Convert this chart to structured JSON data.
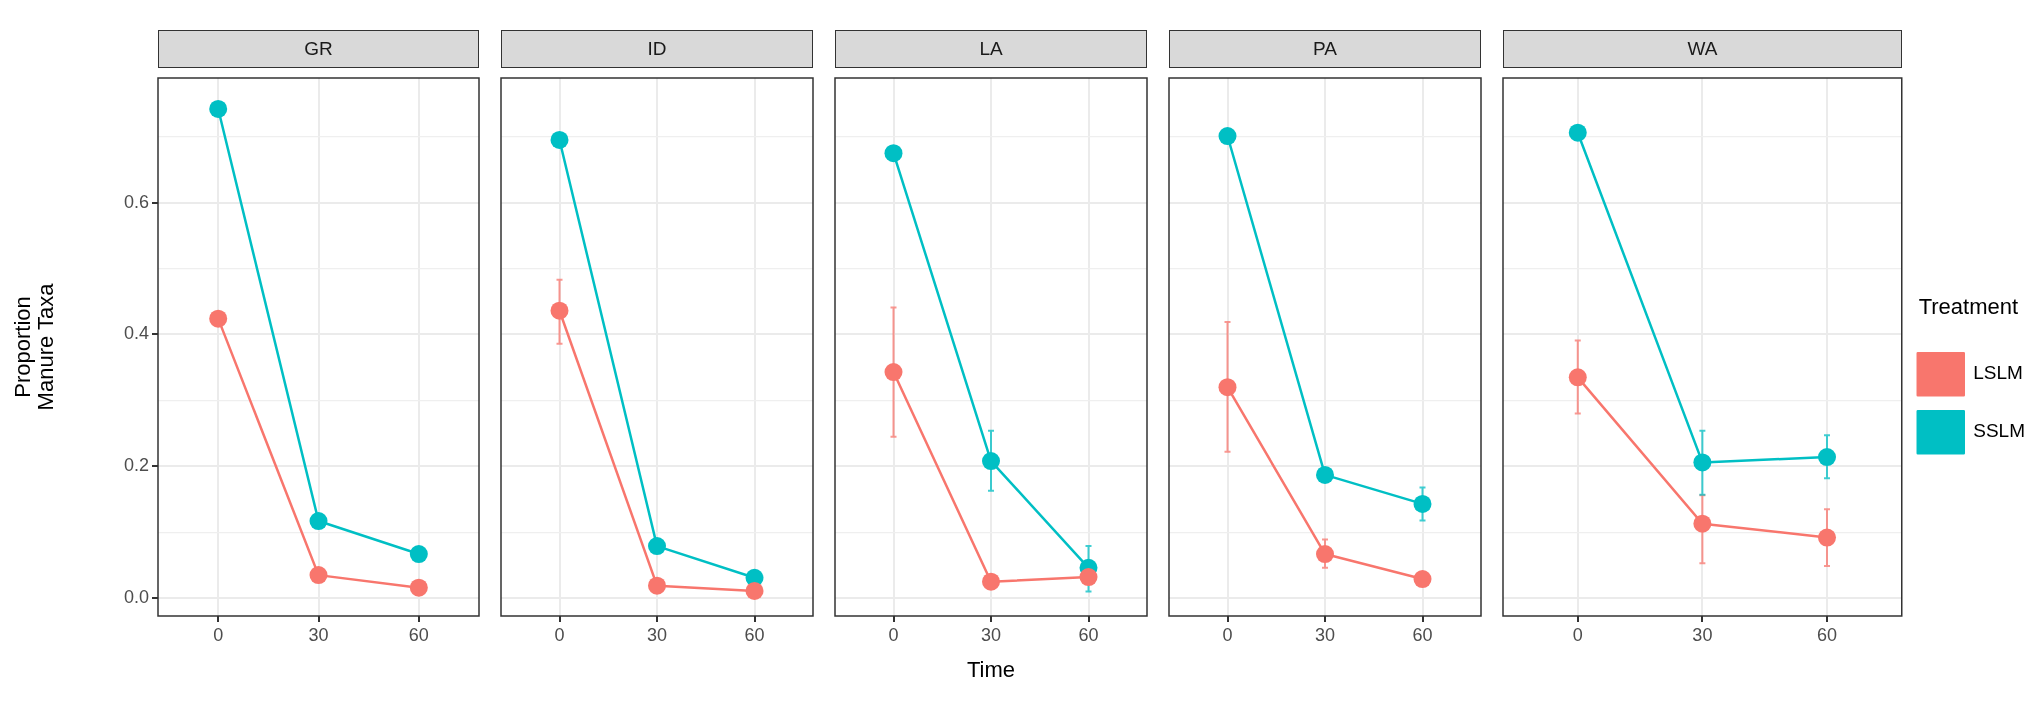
{
  "chart_data": [
    {
      "type": "line",
      "title": "GR",
      "ylabel": "Proportion\nManure Taxa",
      "x": [
        0,
        30,
        60
      ],
      "xlim": [
        -18,
        78
      ],
      "xticks": [
        0,
        30,
        60
      ],
      "ylim": [
        -0.027,
        0.789
      ],
      "yticks": [
        {
          "value": 0,
          "label": "0.0"
        },
        {
          "value": 0.1,
          "label": null
        },
        0.2,
        {
          "value": 0.3,
          "label": null
        },
        0.4,
        {
          "value": 0.5,
          "label": null
        },
        0.6,
        {
          "value": 0.7,
          "label": null
        }
      ],
      "grid": true,
      "marker": "circle",
      "legend": false,
      "series": [
        {
          "color": "#f8766d",
          "values": [
            0.424,
            0.035,
            0.016
          ],
          "errors": [
            null,
            null,
            null
          ]
        },
        {
          "color": "#00bfc4",
          "values": [
            0.742,
            0.117,
            0.067
          ],
          "errors": [
            null,
            null,
            null
          ]
        }
      ]
    },
    {
      "type": "line",
      "title": "ID",
      "x": [
        0,
        30,
        60
      ],
      "xlim": [
        -18,
        78
      ],
      "xticks": [
        0,
        30,
        60
      ],
      "ylim": [
        -0.027,
        0.789
      ],
      "yticks": [
        0,
        {
          "value": 0.1,
          "label": null
        },
        0.2,
        {
          "value": 0.3,
          "label": null
        },
        0.4,
        {
          "value": 0.5,
          "label": null
        },
        0.6,
        {
          "value": 0.7,
          "label": null
        }
      ],
      "grid": true,
      "marker": "circle",
      "legend": false,
      "tick_labels": "x",
      "series": [
        {
          "color": "#f8766d",
          "values": [
            0.436,
            0.019,
            0.011
          ],
          "errors": [
            [
              0.386,
              0.483
            ],
            null,
            null
          ]
        },
        {
          "color": "#00bfc4",
          "values": [
            0.695,
            0.079,
            0.031
          ],
          "errors": [
            null,
            null,
            null
          ]
        }
      ]
    },
    {
      "type": "line",
      "title": "LA",
      "xlabel": "Time",
      "x": [
        0,
        30,
        60
      ],
      "xlim": [
        -18,
        78
      ],
      "xticks": [
        0,
        30,
        60
      ],
      "ylim": [
        -0.027,
        0.789
      ],
      "yticks": [
        0,
        {
          "value": 0.1,
          "label": null
        },
        0.2,
        {
          "value": 0.3,
          "label": null
        },
        0.4,
        {
          "value": 0.5,
          "label": null
        },
        0.6,
        {
          "value": 0.7,
          "label": null
        }
      ],
      "grid": true,
      "marker": "circle",
      "legend": false,
      "tick_labels": "x",
      "series": [
        {
          "color": "#f8766d",
          "values": [
            0.343,
            0.025,
            0.032
          ],
          "errors": [
            [
              0.245,
              0.441
            ],
            null,
            null
          ]
        },
        {
          "color": "#00bfc4",
          "values": [
            0.675,
            0.208,
            0.046
          ],
          "errors": [
            null,
            [
              0.163,
              0.254
            ],
            [
              0.01,
              0.079
            ]
          ]
        }
      ]
    },
    {
      "type": "line",
      "title": "PA",
      "x": [
        0,
        30,
        60
      ],
      "xlim": [
        -18,
        78
      ],
      "xticks": [
        0,
        30,
        60
      ],
      "ylim": [
        -0.027,
        0.789
      ],
      "yticks": [
        0,
        {
          "value": 0.1,
          "label": null
        },
        0.2,
        {
          "value": 0.3,
          "label": null
        },
        0.4,
        {
          "value": 0.5,
          "label": null
        },
        0.6,
        {
          "value": 0.7,
          "label": null
        }
      ],
      "grid": true,
      "marker": "circle",
      "legend": false,
      "tick_labels": "x",
      "series": [
        {
          "color": "#f8766d",
          "values": [
            0.32,
            0.067,
            0.029
          ],
          "errors": [
            [
              0.222,
              0.419
            ],
            [
              0.046,
              0.089
            ],
            null
          ]
        },
        {
          "color": "#00bfc4",
          "values": [
            0.701,
            0.187,
            0.143
          ],
          "errors": [
            null,
            null,
            [
              0.118,
              0.168
            ]
          ]
        }
      ]
    },
    {
      "type": "line",
      "title": "WA",
      "x": [
        0,
        30,
        60
      ],
      "xlim": [
        -18,
        78
      ],
      "xticks": [
        0,
        30,
        60
      ],
      "ylim": [
        -0.027,
        0.789
      ],
      "yticks": [
        0,
        {
          "value": 0.1,
          "label": null
        },
        0.2,
        {
          "value": 0.3,
          "label": null
        },
        0.4,
        {
          "value": 0.5,
          "label": null
        },
        0.6,
        {
          "value": 0.7,
          "label": null
        }
      ],
      "grid": true,
      "marker": "circle",
      "legend": "right",
      "legend_title": "Treatment",
      "tick_labels": "x",
      "series": [
        {
          "name": "LSLM",
          "color": "#f8766d",
          "values": [
            0.335,
            0.113,
            0.092
          ],
          "errors": [
            [
              0.28,
              0.391
            ],
            [
              0.053,
              0.156
            ],
            [
              0.049,
              0.135
            ]
          ]
        },
        {
          "name": "SSLM",
          "color": "#00bfc4",
          "values": [
            0.706,
            0.206,
            0.214
          ],
          "errors": [
            null,
            [
              0.157,
              0.254
            ],
            [
              0.182,
              0.247
            ]
          ]
        }
      ]
    }
  ]
}
